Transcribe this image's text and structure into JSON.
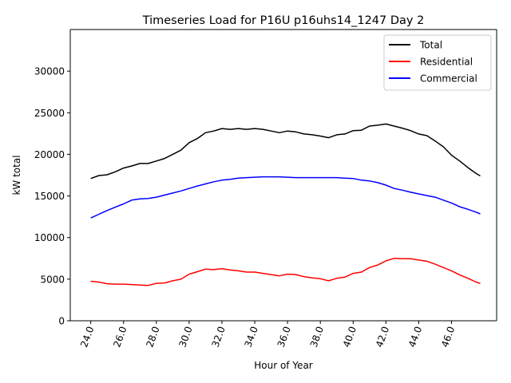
{
  "chart_data": {
    "type": "line",
    "title": "Timeseries Load for P16U p16uhs14_1247  Day 2",
    "xlabel": "Hour of Year",
    "ylabel": "kW total",
    "xlim": [
      22.75,
      48.75
    ],
    "ylim": [
      0,
      35000
    ],
    "grid": false,
    "legend_position": "top-right",
    "x_ticks": [
      24,
      26,
      28,
      30,
      32,
      34,
      36,
      38,
      40,
      42,
      44,
      46
    ],
    "x_tick_labels": [
      "24.0",
      "26.0",
      "28.0",
      "30.0",
      "32.0",
      "34.0",
      "36.0",
      "38.0",
      "40.0",
      "42.0",
      "44.0",
      "46.0"
    ],
    "y_ticks": [
      0,
      5000,
      10000,
      15000,
      20000,
      25000,
      30000
    ],
    "y_tick_labels": [
      "0",
      "5000",
      "10000",
      "15000",
      "20000",
      "25000",
      "30000"
    ],
    "x": [
      24.0,
      24.5,
      25.0,
      25.5,
      26.0,
      26.5,
      27.0,
      27.5,
      28.0,
      28.5,
      29.0,
      29.5,
      30.0,
      30.5,
      31.0,
      31.5,
      32.0,
      32.5,
      33.0,
      33.5,
      34.0,
      34.5,
      35.0,
      35.5,
      36.0,
      36.5,
      37.0,
      37.5,
      38.0,
      38.5,
      39.0,
      39.5,
      40.0,
      40.5,
      41.0,
      41.5,
      42.0,
      42.5,
      43.0,
      43.5,
      44.0,
      44.5,
      45.0,
      45.5,
      46.0,
      46.5,
      47.0,
      47.5,
      47.75
    ],
    "series": [
      {
        "name": "Total",
        "color": "#000000",
        "values": [
          17100,
          17450,
          17550,
          17900,
          18350,
          18600,
          18900,
          18900,
          19200,
          19500,
          20000,
          20500,
          21400,
          21900,
          22600,
          22800,
          23100,
          23000,
          23100,
          23000,
          23100,
          23000,
          22800,
          22600,
          22800,
          22700,
          22450,
          22350,
          22200,
          22000,
          22350,
          22450,
          22850,
          22900,
          23400,
          23500,
          23650,
          23400,
          23150,
          22850,
          22450,
          22250,
          21600,
          20900,
          19900,
          19200,
          18400,
          17700,
          17400
        ]
      },
      {
        "name": "Residential",
        "color": "#ff0000",
        "values": [
          4750,
          4650,
          4450,
          4400,
          4400,
          4350,
          4300,
          4250,
          4500,
          4550,
          4800,
          5000,
          5600,
          5900,
          6200,
          6150,
          6250,
          6100,
          6000,
          5850,
          5850,
          5700,
          5550,
          5400,
          5600,
          5550,
          5300,
          5150,
          5050,
          4800,
          5100,
          5250,
          5700,
          5850,
          6400,
          6700,
          7200,
          7500,
          7450,
          7450,
          7300,
          7150,
          6800,
          6400,
          6000,
          5500,
          5100,
          4650,
          4500
        ]
      },
      {
        "name": "Commercial",
        "color": "#0000ff",
        "values": [
          12350,
          12800,
          13250,
          13650,
          14050,
          14500,
          14650,
          14700,
          14850,
          15100,
          15350,
          15600,
          15900,
          16200,
          16450,
          16700,
          16900,
          17000,
          17150,
          17200,
          17250,
          17300,
          17300,
          17300,
          17250,
          17200,
          17200,
          17200,
          17200,
          17200,
          17200,
          17150,
          17100,
          16900,
          16800,
          16600,
          16300,
          15900,
          15700,
          15450,
          15250,
          15050,
          14850,
          14500,
          14150,
          13700,
          13400,
          13050,
          12850
        ]
      }
    ]
  }
}
